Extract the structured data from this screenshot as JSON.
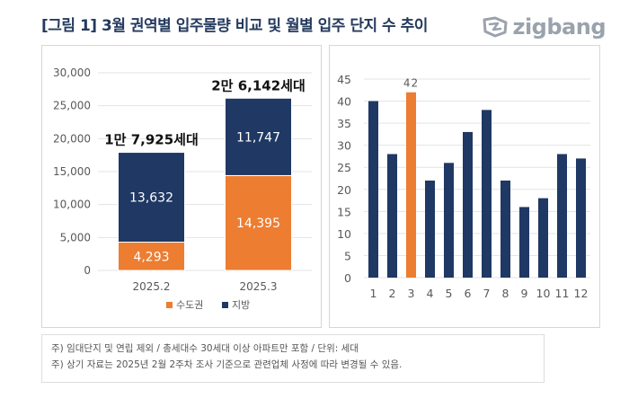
{
  "title": "[그림 1] 3월 권역별 입주물량 비교 및 월별 입주 단지 수 추이",
  "logo": {
    "text": "zigbang",
    "icon": "zigbang-logo-icon"
  },
  "colors": {
    "navy": "#1f3864",
    "orange": "#ed7d31",
    "title": "#243a5e"
  },
  "chart_data": [
    {
      "type": "bar",
      "stacked": true,
      "categories": [
        "2025.2",
        "2025.3"
      ],
      "series": [
        {
          "name": "수도권",
          "values": [
            4293,
            14395
          ],
          "labels": [
            "4,293",
            "14,395"
          ],
          "color": "#ed7d31"
        },
        {
          "name": "지방",
          "values": [
            13632,
            11747
          ],
          "labels": [
            "13,632",
            "11,747"
          ],
          "color": "#1f3864"
        }
      ],
      "totals": [
        "1만 7,925세대",
        "2만 6,142세대"
      ],
      "ylim": [
        0,
        30000
      ],
      "yticks": [
        "0",
        "5,000",
        "10,000",
        "15,000",
        "20,000",
        "25,000",
        "30,000"
      ],
      "yticks_values": [
        0,
        5000,
        10000,
        15000,
        20000,
        25000,
        30000
      ],
      "grid": true,
      "legend": "bottom",
      "xlabel": "",
      "ylabel": ""
    },
    {
      "type": "bar",
      "categories": [
        "1",
        "2",
        "3",
        "4",
        "5",
        "6",
        "7",
        "8",
        "9",
        "10",
        "11",
        "12"
      ],
      "values": [
        40,
        28,
        42,
        22,
        26,
        33,
        38,
        22,
        16,
        18,
        28,
        27
      ],
      "highlight_index": 2,
      "highlight_label": "42",
      "ylim": [
        0,
        45
      ],
      "yticks": [
        "0",
        "5",
        "10",
        "15",
        "20",
        "25",
        "30",
        "35",
        "40",
        "45"
      ],
      "yticks_values": [
        0,
        5,
        10,
        15,
        20,
        25,
        30,
        35,
        40,
        45
      ],
      "grid": true,
      "xlabel": "",
      "ylabel": ""
    }
  ],
  "notes": [
    "주) 임대단지 및 연립 제외 / 총세대수 30세대 이상 아파트만 포함 / 단위: 세대",
    "주) 상기 자료는 2025년 2월 2주차 조사 기준으로 관련업체 사정에 따라 변경될 수 있음."
  ]
}
